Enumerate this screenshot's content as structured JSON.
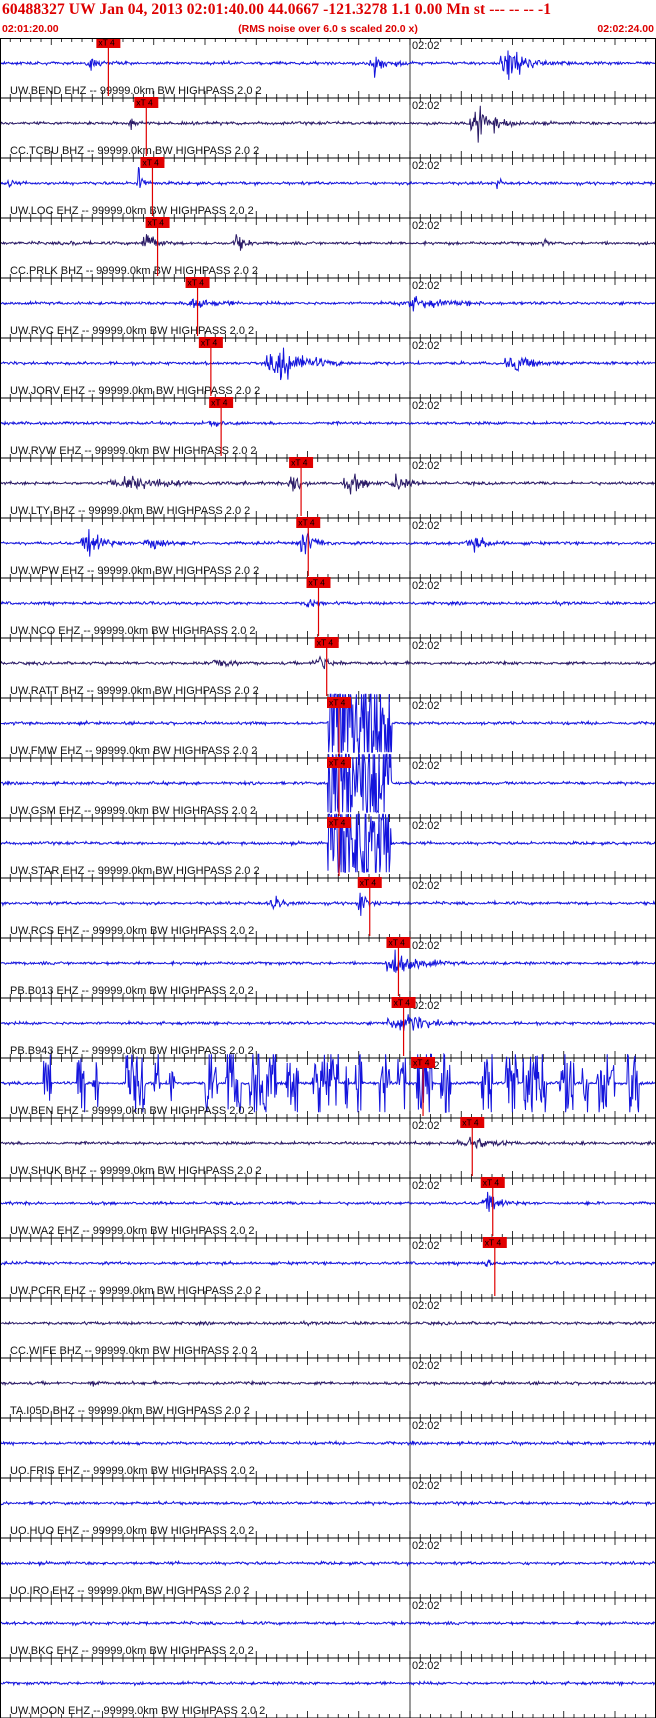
{
  "header": {
    "title": "60488327 UW Jan 04, 2013 02:01:40.00   44.0667 -121.3278  1.1 0.00 Mn st --- -- --  -1",
    "subtitle": "(RMS noise over 6.0 s scaled 20.0 x)",
    "start_time": "02:01:20.00",
    "end_time": "02:02:24.00"
  },
  "colors": {
    "trace_blue": "#1414dc",
    "trace_dark": "#2a1a66",
    "pick": "#e00000",
    "header_text": "#dd0000",
    "grid": "#000000"
  },
  "chart_data": {
    "type": "line",
    "title": "60488327 UW Jan 04, 2013 02:01:40.00   44.0667 -121.3278  1.1 0.00 Mn st --- -- --  -1",
    "subtitle": "(RMS noise over 6.0 s scaled 20.0 x)",
    "x_range_seconds": [
      0,
      64
    ],
    "x_start_label": "02:01:20.00",
    "x_end_label": "02:02:24.00",
    "minute_tick_label": "02:02",
    "minute_tick_seconds": 40,
    "tick_interval_seconds": 1,
    "pick_label": "xT 4",
    "traces": [
      {
        "label": "UW.BEND EHZ -- 99999.0km BW  HIGHPASS  2.0  2",
        "color": "blue",
        "pick_s": 9.5,
        "events": [
          {
            "t": 8.7,
            "a": 1.0,
            "w": 1.2
          },
          {
            "t": 36.5,
            "a": 0.9,
            "w": 2.5
          },
          {
            "t": 49.5,
            "a": 1.6,
            "w": 3.0
          }
        ]
      },
      {
        "label": "CC.TCBU BHZ -- 99999.0km BW  HIGHPASS  2.0  2",
        "color": "dark",
        "pick_s": 13.2,
        "events": [
          {
            "t": 12.8,
            "a": 0.7,
            "w": 1.0
          },
          {
            "t": 46.5,
            "a": 1.7,
            "w": 3.0
          }
        ]
      },
      {
        "label": "UW.LOC EHZ -- 99999.0km BW  HIGHPASS  2.0  2",
        "color": "blue",
        "pick_s": 13.8,
        "events": [
          {
            "t": 0.8,
            "a": 1.6,
            "w": 0.4
          },
          {
            "t": 13.5,
            "a": 1.5,
            "w": 0.8
          },
          {
            "t": 48.5,
            "a": 0.9,
            "w": 0.5
          }
        ]
      },
      {
        "label": "CC.PRLK BHZ -- 99999.0km BW  HIGHPASS  2.0  2",
        "color": "dark",
        "pick_s": 14.3,
        "events": [
          {
            "t": 7.0,
            "a": 0.6,
            "w": 0.6
          },
          {
            "t": 14.2,
            "a": 1.6,
            "w": 1.5
          },
          {
            "t": 23.0,
            "a": 0.8,
            "w": 1.5
          },
          {
            "t": 53.0,
            "a": 0.5,
            "w": 0.5
          }
        ]
      },
      {
        "label": "UW.RVC EHZ -- 99999.0km BW  HIGHPASS  2.0  2",
        "color": "blue",
        "pick_s": 18.2,
        "events": [
          {
            "t": 18.5,
            "a": 0.5,
            "w": 4.0
          },
          {
            "t": 40.0,
            "a": 0.5,
            "w": 6.0
          }
        ]
      },
      {
        "label": "UW.JORV EHZ -- 99999.0km BW  HIGHPASS  2.0  2",
        "color": "blue",
        "pick_s": 19.5,
        "events": [
          {
            "t": 27.0,
            "a": 2.0,
            "w": 4.5
          },
          {
            "t": 50.0,
            "a": 1.0,
            "w": 3.0
          }
        ]
      },
      {
        "label": "UW.RVW EHZ -- 99999.0km BW  HIGHPASS  2.0  2",
        "color": "blue",
        "pick_s": 20.5,
        "events": [
          {
            "t": 20.5,
            "a": 0.6,
            "w": 1.0
          }
        ]
      },
      {
        "label": "UW.LTY BHZ -- 99999.0km BW  HIGHPASS  2.0  2",
        "color": "dark",
        "pick_s": 28.3,
        "events": [
          {
            "t": 12.0,
            "a": 0.7,
            "w": 6.0
          },
          {
            "t": 28.5,
            "a": 1.2,
            "w": 1.5
          },
          {
            "t": 34.0,
            "a": 1.0,
            "w": 2.5
          },
          {
            "t": 38.5,
            "a": 0.8,
            "w": 2.0
          }
        ]
      },
      {
        "label": "UW.WPW EHZ -- 99999.0km BW  HIGHPASS  2.0  2",
        "color": "blue",
        "pick_s": 29.0,
        "events": [
          {
            "t": 8.5,
            "a": 1.3,
            "w": 2.5
          },
          {
            "t": 14.5,
            "a": 1.2,
            "w": 2.0
          },
          {
            "t": 29.5,
            "a": 1.5,
            "w": 2.0
          },
          {
            "t": 46.0,
            "a": 0.6,
            "w": 3.0
          }
        ]
      },
      {
        "label": "UW.NCO EHZ -- 99999.0km BW  HIGHPASS  2.0  2",
        "color": "blue",
        "pick_s": 30.0,
        "events": [
          {
            "t": 30.0,
            "a": 0.5,
            "w": 1.5
          }
        ]
      },
      {
        "label": "UW.RATT BHZ -- 99999.0km BW  HIGHPASS  2.0  2",
        "color": "dark",
        "pick_s": 30.8,
        "events": [
          {
            "t": 21.0,
            "a": 0.5,
            "w": 2.0
          },
          {
            "t": 31.0,
            "a": 0.9,
            "w": 2.0
          }
        ]
      },
      {
        "label": "UW.FMW EHZ -- 99999.0km BW  HIGHPASS  2.0  2",
        "color": "blue",
        "pick_s": 32.0,
        "clip": [
          32.0,
          38.2
        ],
        "events": []
      },
      {
        "label": "UW.GSM EHZ -- 99999.0km BW  HIGHPASS  2.0  2",
        "color": "blue",
        "pick_s": 32.0,
        "clip": [
          32.0,
          38.2
        ],
        "events": []
      },
      {
        "label": "UW.STAR EHZ -- 99999.0km BW  HIGHPASS  2.0  2",
        "color": "blue",
        "pick_s": 32.0,
        "clip": [
          32.0,
          38.2
        ],
        "events": []
      },
      {
        "label": "UW.RCS EHZ -- 99999.0km BW  HIGHPASS  2.0  2",
        "color": "blue",
        "pick_s": 35.0,
        "events": [
          {
            "t": 26.5,
            "a": 0.9,
            "w": 1.5
          },
          {
            "t": 35.0,
            "a": 1.4,
            "w": 1.2
          }
        ]
      },
      {
        "label": "PB.B013 EHZ -- 99999.0km BW  HIGHPASS  2.0  2",
        "color": "blue",
        "pick_s": 37.8,
        "events": [
          {
            "t": 38.5,
            "a": 1.2,
            "w": 4.0
          }
        ]
      },
      {
        "label": "PB.B943 EHZ -- 99999.0km BW  HIGHPASS  2.0  2",
        "color": "blue",
        "pick_s": 38.3,
        "events": [
          {
            "t": 38.8,
            "a": 1.3,
            "w": 4.0
          }
        ]
      },
      {
        "label": "UW.BEN EHZ -- 99999.0km BW  HIGHPASS  2.0  2",
        "color": "blue",
        "pick_s": 40.2,
        "bursts": [
          [
            4.2,
            5.0
          ],
          [
            7.5,
            8.3
          ],
          [
            9.0,
            9.6
          ],
          [
            12.3,
            14.2
          ],
          [
            15.0,
            15.6
          ],
          [
            16.5,
            17.1
          ],
          [
            20.0,
            21.2
          ],
          [
            22.0,
            23.5
          ],
          [
            24.3,
            27.0
          ],
          [
            27.9,
            29.1
          ],
          [
            30.5,
            33.0
          ],
          [
            33.6,
            34.1
          ],
          [
            34.7,
            35.3
          ],
          [
            37.0,
            38.0
          ],
          [
            38.8,
            39.6
          ],
          [
            40.6,
            42.2
          ],
          [
            43.0,
            44.0
          ],
          [
            47.0,
            48.0
          ],
          [
            49.3,
            50.6
          ],
          [
            51.0,
            53.3
          ],
          [
            54.5,
            56.0
          ],
          [
            56.8,
            57.4
          ],
          [
            58.2,
            60.0
          ],
          [
            61.2,
            62.3
          ]
        ],
        "events": []
      },
      {
        "label": "UW.SHUK BHZ -- 99999.0km BW  HIGHPASS  2.0  2",
        "color": "dark",
        "pick_s": 45.0,
        "events": [
          {
            "t": 45.5,
            "a": 0.7,
            "w": 4.0
          }
        ]
      },
      {
        "label": "UW.WA2 EHZ -- 99999.0km BW  HIGHPASS  2.0  2",
        "color": "blue",
        "pick_s": 47.0,
        "events": [
          {
            "t": 47.5,
            "a": 0.9,
            "w": 2.0
          }
        ]
      },
      {
        "label": "UW.PCFR EHZ -- 99999.0km BW  HIGHPASS  2.0  2",
        "color": "blue",
        "pick_s": 47.2,
        "events": [
          {
            "t": 47.2,
            "a": 0.5,
            "w": 1.0
          }
        ]
      },
      {
        "label": "CC.WIFE BHZ -- 99999.0km BW  HIGHPASS  2.0  2",
        "color": "dark",
        "events": []
      },
      {
        "label": "TA.I05D BHZ -- 99999.0km BW  HIGHPASS  2.0  2",
        "color": "dark",
        "events": [
          {
            "t": 9.0,
            "a": 0.4,
            "w": 1.0
          }
        ]
      },
      {
        "label": "UO.FRIS EHZ -- 99999.0km BW  HIGHPASS  2.0  2",
        "color": "blue",
        "events": []
      },
      {
        "label": "UO.HUO EHZ -- 99999.0km BW  HIGHPASS  2.0  2",
        "color": "blue",
        "events": []
      },
      {
        "label": "UO.IRO EHZ -- 99999.0km BW  HIGHPASS  2.0  2",
        "color": "blue",
        "events": []
      },
      {
        "label": "UW.BKC EHZ -- 99999.0km BW  HIGHPASS  2.0  2",
        "color": "blue",
        "events": []
      },
      {
        "label": "UW.MOON EHZ -- 99999.0km BW  HIGHPASS  2.0  2",
        "color": "blue",
        "events": []
      }
    ]
  }
}
